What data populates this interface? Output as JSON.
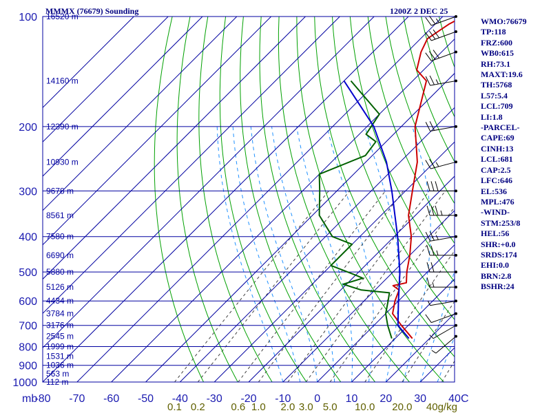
{
  "header": {
    "title": "MMMX (76679) Sounding",
    "datetime": "1200Z  2 DEC 25"
  },
  "colors": {
    "axis": "#1a1ab0",
    "isobar": "#0000a0",
    "isotherm": "#0000a0",
    "dry_adiabat": "#00a000",
    "moist_adiabat": "#1e90ff",
    "mixing_ratio": "#404040",
    "temperature": "#cc0000",
    "dewpoint": "#006000",
    "parcel": "#0000cc",
    "mixing_label": "#606000",
    "barb": "#000000"
  },
  "chart_data": {
    "type": "skew-t",
    "x_unit": "°C",
    "y_unit": "mb",
    "y_scale": "log",
    "ylim": [
      1000,
      100
    ],
    "xlim": [
      -80,
      40
    ],
    "pressure_levels": [
      100,
      200,
      300,
      400,
      500,
      600,
      700,
      800,
      900,
      1000
    ],
    "pressure_tick_labels": [
      "100",
      "200",
      "300",
      "400",
      "500",
      "600",
      "700",
      "800",
      "900",
      "1000"
    ],
    "temperature_ticks": [
      -80,
      -70,
      -60,
      -50,
      -40,
      -30,
      -20,
      -10,
      0,
      10,
      20,
      30,
      40
    ],
    "temperature_tick_labels": [
      "-80",
      "-70",
      "-60",
      "-50",
      "-40",
      "-30",
      "-20",
      "-10",
      "0",
      "10",
      "20",
      "30",
      "40"
    ],
    "x_axis_prefix": "mb",
    "x_axis_suffix": "C",
    "height_labels": [
      {
        "p": 100,
        "text": "16520 m"
      },
      {
        "p": 150,
        "text": "14160 m"
      },
      {
        "p": 200,
        "text": "12390 m"
      },
      {
        "p": 250,
        "text": "10930 m"
      },
      {
        "p": 300,
        "text": "9678 m"
      },
      {
        "p": 350,
        "text": "8561 m"
      },
      {
        "p": 400,
        "text": "7580 m"
      },
      {
        "p": 450,
        "text": "6690 m"
      },
      {
        "p": 500,
        "text": "5880 m"
      },
      {
        "p": 550,
        "text": "5126 m"
      },
      {
        "p": 600,
        "text": "4434 m"
      },
      {
        "p": 650,
        "text": "3784 m"
      },
      {
        "p": 700,
        "text": "3176 m"
      },
      {
        "p": 750,
        "text": "2545 m"
      },
      {
        "p": 800,
        "text": "1999 m"
      },
      {
        "p": 850,
        "text": "1531 m"
      },
      {
        "p": 900,
        "text": "1036 m"
      },
      {
        "p": 950,
        "text": "563 m"
      },
      {
        "p": 1000,
        "text": "112 m"
      }
    ],
    "mixing_ratio_labels": [
      {
        "w": 0.1,
        "text": "0.1"
      },
      {
        "w": 0.2,
        "text": "0.2"
      },
      {
        "w": 0.6,
        "text": "0.6"
      },
      {
        "w": 1.0,
        "text": "1.0"
      },
      {
        "w": 2.0,
        "text": "2.0"
      },
      {
        "w": 3.0,
        "text": "3.0"
      },
      {
        "w": 5.0,
        "text": "5.0"
      },
      {
        "w": 10.0,
        "text": "10.0"
      },
      {
        "w": 20.0,
        "text": "20.0"
      },
      {
        "w": 40.0,
        "text": "40g/kg"
      }
    ],
    "series": [
      {
        "key": "temperature",
        "points": [
          {
            "p": 100,
            "t": -64
          },
          {
            "p": 105,
            "t": -66
          },
          {
            "p": 115,
            "t": -68
          },
          {
            "p": 125,
            "t": -66
          },
          {
            "p": 140,
            "t": -62
          },
          {
            "p": 150,
            "t": -56
          },
          {
            "p": 200,
            "t": -46
          },
          {
            "p": 250,
            "t": -35
          },
          {
            "p": 300,
            "t": -28
          },
          {
            "p": 350,
            "t": -22
          },
          {
            "p": 400,
            "t": -15
          },
          {
            "p": 450,
            "t": -10
          },
          {
            "p": 500,
            "t": -6
          },
          {
            "p": 535,
            "t": -3
          },
          {
            "p": 545,
            "t": -6
          },
          {
            "p": 560,
            "t": -3
          },
          {
            "p": 600,
            "t": -1
          },
          {
            "p": 650,
            "t": 2
          },
          {
            "p": 700,
            "t": 8
          },
          {
            "p": 760,
            "t": 15
          }
        ]
      },
      {
        "key": "dewpoint",
        "points": [
          {
            "p": 150,
            "t": -78
          },
          {
            "p": 185,
            "t": -60
          },
          {
            "p": 210,
            "t": -58
          },
          {
            "p": 220,
            "t": -53
          },
          {
            "p": 240,
            "t": -52
          },
          {
            "p": 270,
            "t": -60
          },
          {
            "p": 300,
            "t": -55
          },
          {
            "p": 350,
            "t": -48
          },
          {
            "p": 400,
            "t": -38
          },
          {
            "p": 420,
            "t": -30
          },
          {
            "p": 480,
            "t": -30
          },
          {
            "p": 510,
            "t": -20
          },
          {
            "p": 520,
            "t": -17
          },
          {
            "p": 540,
            "t": -21
          },
          {
            "p": 560,
            "t": -14
          },
          {
            "p": 570,
            "t": -5
          },
          {
            "p": 600,
            "t": -3
          },
          {
            "p": 650,
            "t": 0
          },
          {
            "p": 700,
            "t": 4
          },
          {
            "p": 760,
            "t": 9
          }
        ]
      },
      {
        "key": "parcel",
        "points": [
          {
            "p": 150,
            "t": -80
          },
          {
            "p": 200,
            "t": -58
          },
          {
            "p": 250,
            "t": -44
          },
          {
            "p": 300,
            "t": -34
          },
          {
            "p": 400,
            "t": -19
          },
          {
            "p": 500,
            "t": -8
          },
          {
            "p": 600,
            "t": 0
          },
          {
            "p": 700,
            "t": 7
          },
          {
            "p": 760,
            "t": 14
          }
        ]
      }
    ],
    "wind_barbs": [
      {
        "p": 100,
        "dir": 250,
        "spd": 25
      },
      {
        "p": 110,
        "dir": 250,
        "spd": 30
      },
      {
        "p": 125,
        "dir": 250,
        "spd": 30
      },
      {
        "p": 150,
        "dir": 260,
        "spd": 25
      },
      {
        "p": 200,
        "dir": 260,
        "spd": 20
      },
      {
        "p": 250,
        "dir": 255,
        "spd": 25
      },
      {
        "p": 300,
        "dir": 270,
        "spd": 30
      },
      {
        "p": 350,
        "dir": 270,
        "spd": 35
      },
      {
        "p": 400,
        "dir": 260,
        "spd": 25
      },
      {
        "p": 450,
        "dir": 270,
        "spd": 25
      },
      {
        "p": 500,
        "dir": 270,
        "spd": 20
      },
      {
        "p": 550,
        "dir": 270,
        "spd": 15
      },
      {
        "p": 600,
        "dir": 260,
        "spd": 5
      },
      {
        "p": 650,
        "dir": 250,
        "spd": 10
      },
      {
        "p": 700,
        "dir": 240,
        "spd": 5
      },
      {
        "p": 750,
        "dir": 230,
        "spd": 5
      }
    ]
  },
  "indices": [
    "WMO:76679",
    "TP:118",
    "FRZ:600",
    "WB0:615",
    "RH:73.1",
    "MAXT:19.6",
    "TH:5768",
    "L57:5.4",
    "LCL:709",
    "LI:1.8",
    "-PARCEL-",
    "CAPE:69",
    "CINH:13",
    "LCL:681",
    "CAP:2.5",
    "LFC:646",
    "EL:536",
    "MPL:476",
    "-WIND-",
    "STM:253/8",
    "HEL:56",
    "SHR:+0.0",
    "SRDS:174",
    "EHI:0.0",
    "BRN:2.8",
    "BSHR:24"
  ]
}
